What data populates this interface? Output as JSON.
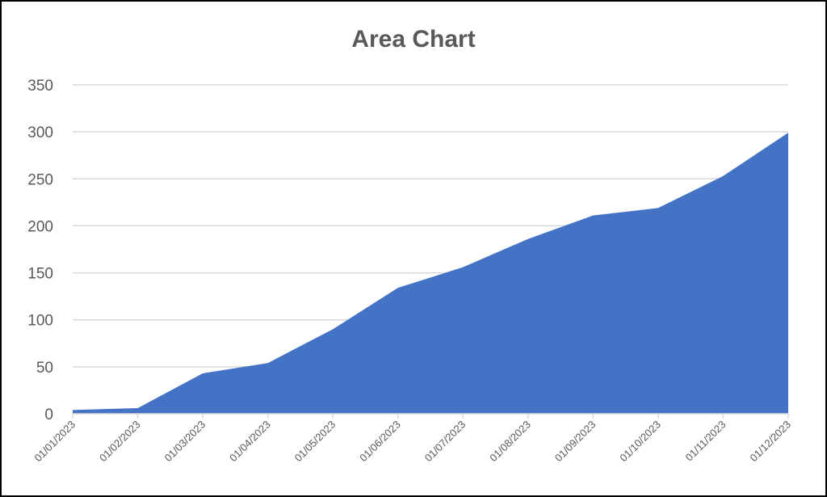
{
  "chart_data": {
    "type": "area",
    "title": "Area Chart",
    "xlabel": "",
    "ylabel": "",
    "categories": [
      "01/01/2023",
      "01/02/2023",
      "01/03/2023",
      "01/04/2023",
      "01/05/2023",
      "01/06/2023",
      "01/07/2023",
      "01/08/2023",
      "01/09/2023",
      "01/10/2023",
      "01/11/2023",
      "01/12/2023"
    ],
    "values": [
      4,
      6,
      43,
      54,
      90,
      134,
      156,
      186,
      211,
      219,
      253,
      299
    ],
    "ylim": [
      0,
      350
    ],
    "yticks": [
      0,
      50,
      100,
      150,
      200,
      250,
      300,
      350
    ],
    "grid": true,
    "legend": "none",
    "color": "#4472C4"
  }
}
